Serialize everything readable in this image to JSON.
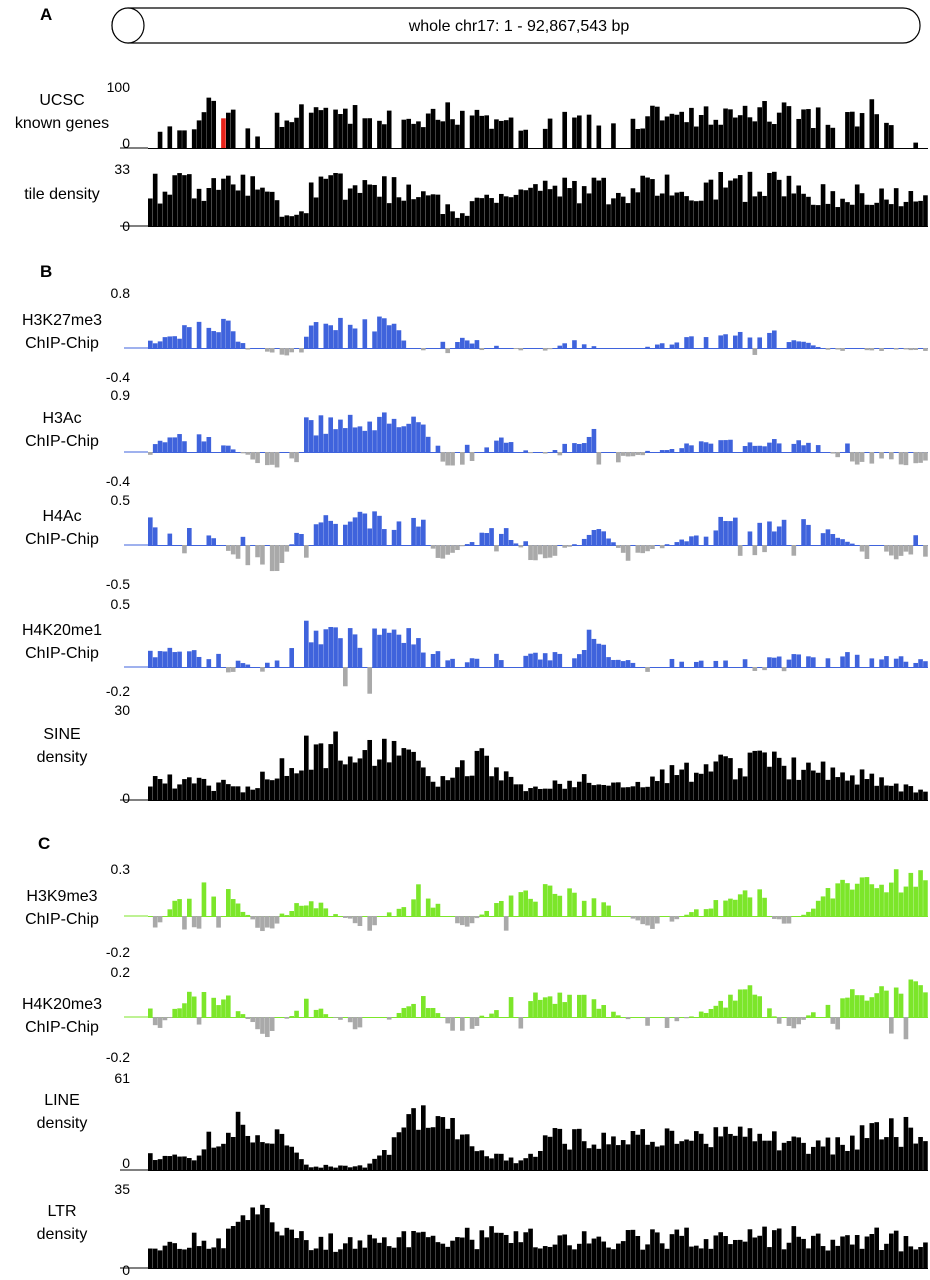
{
  "figure": {
    "chromosome_banner": "whole chr17: 1 - 92,867,543 bp",
    "panels": [
      {
        "letter": "A"
      },
      {
        "letter": "B"
      },
      {
        "letter": "C"
      }
    ],
    "colors": {
      "density_bar": "#000000",
      "highlight": "#e8231a",
      "chip_blue": "#3f63dc",
      "chip_green": "#7ce62a",
      "negative_grey": "#a9a9a9"
    }
  },
  "chart_data": [
    {
      "type": "bar",
      "panel": "A",
      "label_lines": [
        "UCSC",
        "known genes"
      ],
      "ticks": [
        "100",
        "0"
      ],
      "ylim": [
        0,
        100
      ],
      "style": "positive",
      "color": "#000000",
      "highlight": {
        "color": "#e8231a",
        "x_fraction": [
          0.082,
          0.098
        ]
      },
      "profile": [
        [
          0.0,
          20,
          0.45
        ],
        [
          0.07,
          60,
          0.7
        ],
        [
          0.082,
          100,
          1
        ],
        [
          0.1,
          60,
          0.8
        ],
        [
          0.14,
          40,
          0.5
        ],
        [
          0.16,
          50,
          0.35
        ],
        [
          0.2,
          70,
          0.8
        ],
        [
          0.35,
          55,
          0.7
        ],
        [
          0.38,
          75,
          0.85
        ],
        [
          0.47,
          45,
          0.55
        ],
        [
          0.5,
          30,
          0.35
        ],
        [
          0.53,
          60,
          0.75
        ],
        [
          0.6,
          40,
          0.5
        ],
        [
          0.65,
          65,
          0.85
        ],
        [
          0.8,
          70,
          0.85
        ],
        [
          0.88,
          60,
          0.75
        ],
        [
          0.93,
          75,
          0.7
        ],
        [
          0.97,
          20,
          0.2
        ],
        [
          1.0,
          15,
          0.2
        ]
      ]
    },
    {
      "type": "bar",
      "panel": "A",
      "label_lines": [
        "tile density"
      ],
      "ticks": [
        "33",
        "0"
      ],
      "ylim": [
        0,
        33
      ],
      "style": "positive",
      "color": "#000000",
      "profile": [
        [
          0.0,
          26,
          1
        ],
        [
          0.13,
          26,
          1
        ],
        [
          0.16,
          16,
          1
        ],
        [
          0.18,
          5,
          1
        ],
        [
          0.2,
          8,
          1
        ],
        [
          0.21,
          28,
          1
        ],
        [
          0.35,
          24,
          1
        ],
        [
          0.38,
          12,
          1
        ],
        [
          0.4,
          4,
          1
        ],
        [
          0.42,
          22,
          1
        ],
        [
          0.6,
          25,
          1
        ],
        [
          0.8,
          27,
          1
        ],
        [
          0.97,
          18,
          1
        ],
        [
          1.0,
          18,
          1
        ]
      ]
    },
    {
      "type": "bar",
      "panel": "B",
      "label_lines": [
        "H3K27me3",
        "ChIP-Chip"
      ],
      "ticks": [
        "0.8",
        "-0.4"
      ],
      "ylim": [
        -0.4,
        0.8
      ],
      "style": "signed",
      "color": "#3f63dc",
      "profile": [
        [
          0.0,
          0.1,
          0.6
        ],
        [
          0.05,
          0.3,
          0.8
        ],
        [
          0.1,
          0.4,
          0.8
        ],
        [
          0.13,
          -0.1,
          0.6
        ],
        [
          0.2,
          -0.12,
          0.5
        ],
        [
          0.2,
          0.3,
          0.7
        ],
        [
          0.3,
          0.45,
          0.8
        ],
        [
          0.35,
          -0.08,
          0.5
        ],
        [
          0.38,
          0.2,
          0.6
        ],
        [
          0.5,
          -0.1,
          0.5
        ],
        [
          0.55,
          0.15,
          0.5
        ],
        [
          0.6,
          -0.08,
          0.5
        ],
        [
          0.7,
          0.15,
          0.6
        ],
        [
          0.8,
          0.25,
          0.6
        ],
        [
          0.88,
          -0.05,
          0.5
        ],
        [
          1.0,
          -0.05,
          0.5
        ]
      ]
    },
    {
      "type": "bar",
      "panel": "B",
      "label_lines": [
        "H3Ac",
        "ChIP-Chip"
      ],
      "ticks": [
        "0.9",
        "-0.4"
      ],
      "ylim": [
        -0.4,
        0.9
      ],
      "style": "signed",
      "color": "#3f63dc",
      "profile": [
        [
          0.0,
          0.1,
          0.6
        ],
        [
          0.05,
          0.3,
          0.8
        ],
        [
          0.1,
          0.1,
          0.6
        ],
        [
          0.15,
          -0.25,
          0.8
        ],
        [
          0.2,
          -0.1,
          0.6
        ],
        [
          0.2,
          0.5,
          1
        ],
        [
          0.35,
          0.55,
          1
        ],
        [
          0.37,
          -0.2,
          0.8
        ],
        [
          0.42,
          -0.15,
          0.7
        ],
        [
          0.45,
          0.35,
          0.9
        ],
        [
          0.5,
          -0.1,
          0.6
        ],
        [
          0.58,
          0.4,
          0.9
        ],
        [
          0.6,
          -0.15,
          0.6
        ],
        [
          0.7,
          0.15,
          0.7
        ],
        [
          0.85,
          0.2,
          0.7
        ],
        [
          0.9,
          -0.2,
          0.8
        ],
        [
          1.0,
          -0.2,
          0.8
        ]
      ]
    },
    {
      "type": "bar",
      "panel": "B",
      "label_lines": [
        "H4Ac",
        "ChIP-Chip"
      ],
      "ticks": [
        "0.5",
        "-0.5"
      ],
      "ylim": [
        -0.5,
        0.5
      ],
      "style": "signed",
      "color": "#3f63dc",
      "profile": [
        [
          0.0,
          0.25,
          0.7
        ],
        [
          0.07,
          0.15,
          0.6
        ],
        [
          0.12,
          -0.2,
          0.7
        ],
        [
          0.16,
          -0.35,
          0.9
        ],
        [
          0.2,
          0.3,
          0.8
        ],
        [
          0.35,
          0.3,
          0.8
        ],
        [
          0.37,
          -0.2,
          0.7
        ],
        [
          0.45,
          0.25,
          0.8
        ],
        [
          0.5,
          -0.25,
          0.8
        ],
        [
          0.58,
          0.2,
          0.7
        ],
        [
          0.62,
          -0.2,
          0.7
        ],
        [
          0.75,
          0.3,
          0.8
        ],
        [
          0.88,
          0.2,
          0.7
        ],
        [
          0.92,
          -0.15,
          0.7
        ],
        [
          1.0,
          -0.15,
          0.7
        ]
      ]
    },
    {
      "type": "bar",
      "panel": "B",
      "label_lines": [
        "H4K20me1",
        "ChIP-Chip"
      ],
      "ticks": [
        "0.5",
        "-0.2"
      ],
      "ylim": [
        -0.2,
        0.5
      ],
      "style": "signed",
      "color": "#3f63dc",
      "profile": [
        [
          0.0,
          0.15,
          0.8
        ],
        [
          0.1,
          0.1,
          0.7
        ],
        [
          0.15,
          -0.06,
          0.5
        ],
        [
          0.2,
          0.35,
          1
        ],
        [
          0.35,
          0.25,
          0.9
        ],
        [
          0.38,
          0.05,
          0.6
        ],
        [
          0.45,
          0.1,
          0.7
        ],
        [
          0.55,
          0.1,
          0.7
        ],
        [
          0.57,
          0.3,
          1
        ],
        [
          0.6,
          0.05,
          0.6
        ],
        [
          0.8,
          0.08,
          0.6
        ],
        [
          0.9,
          0.12,
          0.7
        ],
        [
          1.0,
          0.05,
          0.6
        ]
      ]
    },
    {
      "type": "bar",
      "panel": "B",
      "label_lines": [
        "SINE",
        "density"
      ],
      "ticks": [
        "30",
        "0"
      ],
      "ylim": [
        0,
        30
      ],
      "style": "positive",
      "color": "#000000",
      "profile": [
        [
          0.0,
          8,
          1
        ],
        [
          0.13,
          5,
          1
        ],
        [
          0.2,
          20,
          1
        ],
        [
          0.35,
          18,
          1
        ],
        [
          0.37,
          5,
          1
        ],
        [
          0.42,
          18,
          1
        ],
        [
          0.48,
          5,
          1
        ],
        [
          0.55,
          8,
          1
        ],
        [
          0.6,
          5,
          1
        ],
        [
          0.7,
          12,
          1
        ],
        [
          0.8,
          15,
          1
        ],
        [
          0.9,
          10,
          1
        ],
        [
          1.0,
          3,
          1
        ]
      ]
    },
    {
      "type": "bar",
      "panel": "C",
      "label_lines": [
        "H3K9me3",
        "ChIP-Chip"
      ],
      "ticks": [
        "0.3",
        "-0.2"
      ],
      "ylim": [
        -0.2,
        0.3
      ],
      "style": "signed",
      "color": "#7ce62a",
      "profile": [
        [
          0.0,
          -0.12,
          0.8
        ],
        [
          0.05,
          0.2,
          0.9
        ],
        [
          0.1,
          0.15,
          0.8
        ],
        [
          0.15,
          -0.12,
          0.7
        ],
        [
          0.2,
          0.12,
          0.7
        ],
        [
          0.28,
          -0.08,
          0.6
        ],
        [
          0.35,
          0.18,
          0.8
        ],
        [
          0.4,
          -0.1,
          0.6
        ],
        [
          0.47,
          0.18,
          0.8
        ],
        [
          0.55,
          0.15,
          0.8
        ],
        [
          0.65,
          -0.08,
          0.6
        ],
        [
          0.78,
          0.2,
          0.9
        ],
        [
          0.82,
          -0.08,
          0.6
        ],
        [
          0.9,
          0.25,
          1
        ],
        [
          1.0,
          0.25,
          1
        ]
      ]
    },
    {
      "type": "bar",
      "panel": "C",
      "label_lines": [
        "H4K20me3",
        "ChIP-Chip"
      ],
      "ticks": [
        "0.2",
        "-0.2"
      ],
      "ylim": [
        -0.2,
        0.2
      ],
      "style": "signed",
      "color": "#7ce62a",
      "profile": [
        [
          0.0,
          -0.1,
          0.8
        ],
        [
          0.05,
          0.12,
          0.9
        ],
        [
          0.1,
          0.1,
          0.8
        ],
        [
          0.15,
          -0.12,
          0.7
        ],
        [
          0.2,
          0.08,
          0.7
        ],
        [
          0.28,
          -0.1,
          0.6
        ],
        [
          0.35,
          0.12,
          0.8
        ],
        [
          0.4,
          -0.1,
          0.6
        ],
        [
          0.47,
          0.1,
          0.8
        ],
        [
          0.55,
          0.12,
          0.8
        ],
        [
          0.65,
          -0.08,
          0.6
        ],
        [
          0.78,
          0.15,
          0.9
        ],
        [
          0.82,
          -0.08,
          0.6
        ],
        [
          0.9,
          0.16,
          1
        ],
        [
          1.0,
          0.16,
          1
        ]
      ]
    },
    {
      "type": "bar",
      "panel": "C",
      "label_lines": [
        "LINE",
        "density"
      ],
      "ticks": [
        "61",
        "0"
      ],
      "ylim": [
        0,
        61
      ],
      "style": "positive",
      "color": "#000000",
      "profile": [
        [
          0.0,
          10,
          1
        ],
        [
          0.05,
          8,
          1
        ],
        [
          0.1,
          35,
          1
        ],
        [
          0.18,
          20,
          1
        ],
        [
          0.2,
          3,
          1
        ],
        [
          0.28,
          3,
          1
        ],
        [
          0.35,
          45,
          1
        ],
        [
          0.42,
          20,
          1
        ],
        [
          0.48,
          5,
          1
        ],
        [
          0.52,
          25,
          1
        ],
        [
          0.6,
          25,
          1
        ],
        [
          0.7,
          25,
          1
        ],
        [
          0.78,
          25,
          1
        ],
        [
          0.88,
          20,
          1
        ],
        [
          0.93,
          30,
          1
        ],
        [
          1.0,
          30,
          1
        ]
      ]
    },
    {
      "type": "bar",
      "panel": "C",
      "label_lines": [
        "LTR",
        "density"
      ],
      "ticks": [
        "35",
        "0"
      ],
      "ylim": [
        0,
        35
      ],
      "style": "positive",
      "color": "#000000",
      "profile": [
        [
          0.0,
          10,
          1
        ],
        [
          0.1,
          15,
          1
        ],
        [
          0.15,
          28,
          1
        ],
        [
          0.2,
          12,
          1
        ],
        [
          0.4,
          15,
          1
        ],
        [
          0.6,
          14,
          1
        ],
        [
          0.8,
          15,
          1
        ],
        [
          1.0,
          14,
          1
        ]
      ]
    }
  ]
}
